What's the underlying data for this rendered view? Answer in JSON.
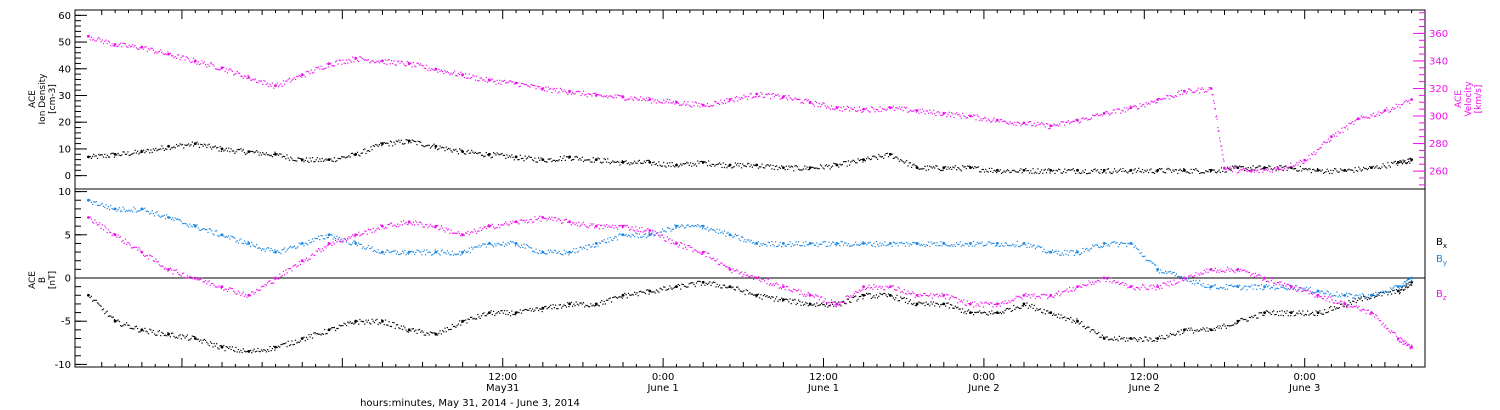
{
  "figure": {
    "xaxis_title": "hours:minutes, May 31, 2014 - June  3, 2014"
  },
  "legend": {
    "bx": "B",
    "bx_sub": "x",
    "by": "B",
    "by_sub": "y",
    "bz": "B",
    "bz_sub": "z"
  },
  "colors": {
    "black": "#000000",
    "magenta": "#ee11ee",
    "blue": "#1a86e0"
  },
  "chart_data": [
    {
      "type": "scatter",
      "panel": "top",
      "ylabel_left_lines": [
        "ACE",
        "Ion Density",
        "[cm-3]"
      ],
      "ylabel_right_lines": [
        "ACE",
        "Velocity",
        "[km/s]"
      ],
      "xlim_hours": [
        -20,
        81
      ],
      "ylim_left": [
        -5,
        62
      ],
      "ylim_right": [
        247,
        377
      ],
      "left_ticks": [
        "0",
        "10",
        "20",
        "30",
        "40",
        "50",
        "60"
      ],
      "right_ticks": [
        "260",
        "280",
        "300",
        "320",
        "340",
        "360"
      ],
      "series": [
        {
          "axis": "left",
          "color": "#000000",
          "points": [
            [
              -19,
              7
            ],
            [
              -17,
              8
            ],
            [
              -15,
              9
            ],
            [
              -13,
              11
            ],
            [
              -11,
              12
            ],
            [
              -9,
              10
            ],
            [
              -7,
              9
            ],
            [
              -5,
              8
            ],
            [
              -3,
              6
            ],
            [
              -1,
              6
            ],
            [
              1,
              8
            ],
            [
              3,
              12
            ],
            [
              5,
              13
            ],
            [
              7,
              11
            ],
            [
              9,
              9
            ],
            [
              11,
              8
            ],
            [
              13,
              7
            ],
            [
              15,
              6
            ],
            [
              17,
              7
            ],
            [
              19,
              6
            ],
            [
              21,
              5
            ],
            [
              23,
              5
            ],
            [
              25,
              4
            ],
            [
              27,
              5
            ],
            [
              29,
              4
            ],
            [
              31,
              4
            ],
            [
              33,
              3
            ],
            [
              35,
              3
            ],
            [
              37,
              4
            ],
            [
              39,
              6
            ],
            [
              41,
              8
            ],
            [
              43,
              3
            ],
            [
              45,
              3
            ],
            [
              47,
              3
            ],
            [
              49,
              2
            ],
            [
              51,
              2
            ],
            [
              53,
              2
            ],
            [
              55,
              2
            ],
            [
              57,
              2
            ],
            [
              59,
              2
            ],
            [
              61,
              2
            ],
            [
              63,
              2
            ],
            [
              65,
              2
            ],
            [
              67,
              3
            ],
            [
              69,
              3
            ],
            [
              71,
              3
            ],
            [
              73,
              2
            ],
            [
              75,
              2
            ],
            [
              77,
              3
            ],
            [
              79,
              5
            ],
            [
              80,
              6
            ]
          ]
        },
        {
          "axis": "right",
          "color": "#ee11ee",
          "points": [
            [
              -19,
              358
            ],
            [
              -17,
              352
            ],
            [
              -15,
              350
            ],
            [
              -13,
              345
            ],
            [
              -11,
              340
            ],
            [
              -9,
              335
            ],
            [
              -7,
              328
            ],
            [
              -5,
              322
            ],
            [
              -3,
              330
            ],
            [
              -1,
              338
            ],
            [
              1,
              342
            ],
            [
              3,
              340
            ],
            [
              5,
              338
            ],
            [
              7,
              334
            ],
            [
              9,
              330
            ],
            [
              11,
              326
            ],
            [
              13,
              324
            ],
            [
              15,
              320
            ],
            [
              17,
              318
            ],
            [
              19,
              315
            ],
            [
              21,
              314
            ],
            [
              23,
              312
            ],
            [
              25,
              310
            ],
            [
              27,
              308
            ],
            [
              29,
              312
            ],
            [
              31,
              316
            ],
            [
              33,
              314
            ],
            [
              35,
              310
            ],
            [
              37,
              306
            ],
            [
              39,
              305
            ],
            [
              41,
              306
            ],
            [
              43,
              304
            ],
            [
              45,
              302
            ],
            [
              47,
              300
            ],
            [
              49,
              297
            ],
            [
              51,
              295
            ],
            [
              53,
              293
            ],
            [
              55,
              297
            ],
            [
              57,
              302
            ],
            [
              59,
              306
            ],
            [
              61,
              312
            ],
            [
              63,
              318
            ],
            [
              65,
              320
            ],
            [
              66,
              262
            ],
            [
              68,
              260
            ],
            [
              70,
              262
            ],
            [
              72,
              268
            ],
            [
              74,
              285
            ],
            [
              76,
              298
            ],
            [
              78,
              304
            ],
            [
              80,
              312
            ]
          ]
        }
      ]
    },
    {
      "type": "scatter",
      "panel": "bottom",
      "ylabel_lines": [
        "ACE",
        "B",
        "[nT]"
      ],
      "xlim_hours": [
        -20,
        81
      ],
      "ylim": [
        -10.3,
        10.3
      ],
      "y_ticks": [
        "-10",
        "-5",
        "0",
        "5",
        "10"
      ],
      "zero_line": true,
      "x_ticks": [
        {
          "hour": 12,
          "line1": "12:00",
          "line2": "May31"
        },
        {
          "hour": 24,
          "line1": "0:00",
          "line2": "June 1"
        },
        {
          "hour": 36,
          "line1": "12:00",
          "line2": "June 1"
        },
        {
          "hour": 48,
          "line1": "0:00",
          "line2": "June 2"
        },
        {
          "hour": 60,
          "line1": "12:00",
          "line2": "June 2"
        },
        {
          "hour": 72,
          "line1": "0:00",
          "line2": "June 3"
        }
      ],
      "series": [
        {
          "name": "Bx",
          "color": "#000000",
          "points": [
            [
              -19,
              -2
            ],
            [
              -17,
              -5
            ],
            [
              -15,
              -6
            ],
            [
              -13,
              -6.5
            ],
            [
              -11,
              -7
            ],
            [
              -9,
              -8
            ],
            [
              -7,
              -8.5
            ],
            [
              -5,
              -8
            ],
            [
              -3,
              -7
            ],
            [
              -1,
              -6
            ],
            [
              1,
              -5
            ],
            [
              3,
              -5
            ],
            [
              5,
              -6
            ],
            [
              7,
              -6.5
            ],
            [
              9,
              -5
            ],
            [
              11,
              -4
            ],
            [
              13,
              -4
            ],
            [
              15,
              -3.5
            ],
            [
              17,
              -3
            ],
            [
              19,
              -3
            ],
            [
              21,
              -2
            ],
            [
              23,
              -1.5
            ],
            [
              25,
              -1
            ],
            [
              27,
              -0.5
            ],
            [
              29,
              -1
            ],
            [
              31,
              -2
            ],
            [
              33,
              -2.5
            ],
            [
              35,
              -3
            ],
            [
              37,
              -3
            ],
            [
              39,
              -2
            ],
            [
              41,
              -2
            ],
            [
              43,
              -3
            ],
            [
              45,
              -3
            ],
            [
              47,
              -4
            ],
            [
              49,
              -4
            ],
            [
              51,
              -3
            ],
            [
              53,
              -4
            ],
            [
              55,
              -5
            ],
            [
              57,
              -7
            ],
            [
              59,
              -7
            ],
            [
              61,
              -7
            ],
            [
              63,
              -6
            ],
            [
              65,
              -6
            ],
            [
              67,
              -5
            ],
            [
              69,
              -4
            ],
            [
              71,
              -4
            ],
            [
              73,
              -4
            ],
            [
              75,
              -3
            ],
            [
              77,
              -2
            ],
            [
              79,
              -1.5
            ],
            [
              80,
              -0.5
            ]
          ]
        },
        {
          "name": "By",
          "color": "#1a86e0",
          "points": [
            [
              -19,
              9
            ],
            [
              -17,
              8
            ],
            [
              -15,
              8
            ],
            [
              -13,
              7
            ],
            [
              -11,
              6
            ],
            [
              -9,
              5
            ],
            [
              -7,
              4
            ],
            [
              -5,
              3
            ],
            [
              -3,
              4
            ],
            [
              -1,
              5
            ],
            [
              1,
              4
            ],
            [
              3,
              3
            ],
            [
              5,
              3
            ],
            [
              7,
              3
            ],
            [
              9,
              3
            ],
            [
              11,
              4
            ],
            [
              13,
              4
            ],
            [
              15,
              3
            ],
            [
              17,
              3
            ],
            [
              19,
              4
            ],
            [
              21,
              5
            ],
            [
              23,
              5
            ],
            [
              25,
              6
            ],
            [
              27,
              6
            ],
            [
              29,
              5
            ],
            [
              31,
              4
            ],
            [
              33,
              4
            ],
            [
              35,
              4
            ],
            [
              37,
              4
            ],
            [
              39,
              4
            ],
            [
              41,
              4
            ],
            [
              43,
              4
            ],
            [
              45,
              4
            ],
            [
              47,
              4
            ],
            [
              49,
              4
            ],
            [
              51,
              4
            ],
            [
              53,
              3
            ],
            [
              55,
              3
            ],
            [
              57,
              4
            ],
            [
              59,
              4
            ],
            [
              61,
              1
            ],
            [
              63,
              0
            ],
            [
              65,
              -1
            ],
            [
              67,
              -1
            ],
            [
              69,
              -1
            ],
            [
              71,
              -1
            ],
            [
              73,
              -1.5
            ],
            [
              75,
              -2
            ],
            [
              77,
              -2
            ],
            [
              79,
              -1
            ],
            [
              80,
              0
            ]
          ]
        },
        {
          "name": "Bz",
          "color": "#ee11ee",
          "points": [
            [
              -19,
              7
            ],
            [
              -17,
              5
            ],
            [
              -15,
              3
            ],
            [
              -13,
              1
            ],
            [
              -11,
              0
            ],
            [
              -9,
              -1
            ],
            [
              -7,
              -2
            ],
            [
              -5,
              0
            ],
            [
              -3,
              2
            ],
            [
              -1,
              4
            ],
            [
              1,
              5
            ],
            [
              3,
              6
            ],
            [
              5,
              6.5
            ],
            [
              7,
              6
            ],
            [
              9,
              5
            ],
            [
              11,
              6
            ],
            [
              13,
              6.5
            ],
            [
              15,
              7
            ],
            [
              17,
              6.5
            ],
            [
              19,
              6
            ],
            [
              21,
              6
            ],
            [
              23,
              5.5
            ],
            [
              25,
              4
            ],
            [
              27,
              3
            ],
            [
              29,
              1
            ],
            [
              31,
              0
            ],
            [
              33,
              -1
            ],
            [
              35,
              -2
            ],
            [
              37,
              -3
            ],
            [
              39,
              -1
            ],
            [
              41,
              -1
            ],
            [
              43,
              -2
            ],
            [
              45,
              -2
            ],
            [
              47,
              -3
            ],
            [
              49,
              -3
            ],
            [
              51,
              -2
            ],
            [
              53,
              -2
            ],
            [
              55,
              -1
            ],
            [
              57,
              0
            ],
            [
              59,
              -1
            ],
            [
              61,
              -1
            ],
            [
              63,
              0
            ],
            [
              65,
              1
            ],
            [
              67,
              1
            ],
            [
              69,
              0
            ],
            [
              71,
              -1
            ],
            [
              73,
              -2
            ],
            [
              75,
              -3
            ],
            [
              77,
              -4
            ],
            [
              79,
              -7
            ],
            [
              80,
              -8
            ]
          ]
        }
      ]
    }
  ]
}
